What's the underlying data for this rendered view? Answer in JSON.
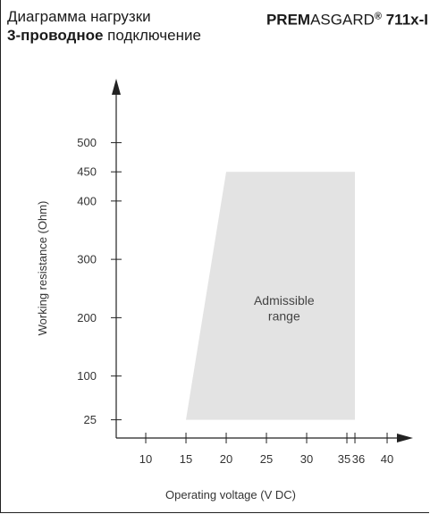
{
  "header": {
    "title_line1": "Диаграмма нагрузки",
    "title_line2_bold": "3-проводное",
    "title_line2_rest": " подключение",
    "product_bold1": "PREM",
    "product_regular": "ASGARD",
    "product_reg_mark": "®",
    "product_bold2": " 711x-I"
  },
  "chart_data": {
    "type": "area",
    "xlabel": "Operating voltage  (V DC)",
    "ylabel": "Working resistance  (Ohm)",
    "x_ticks": [
      10,
      15,
      20,
      25,
      30,
      35,
      36,
      40
    ],
    "y_ticks": [
      25,
      100,
      200,
      300,
      400,
      450,
      500
    ],
    "region": {
      "label_line1": "Admissible",
      "label_line2": "range",
      "fill": "#e3e3e3",
      "polygon": [
        {
          "x": 15,
          "y": 25
        },
        {
          "x": 20,
          "y": 450
        },
        {
          "x": 36,
          "y": 450
        },
        {
          "x": 36,
          "y": 25
        }
      ]
    },
    "grid": false
  }
}
